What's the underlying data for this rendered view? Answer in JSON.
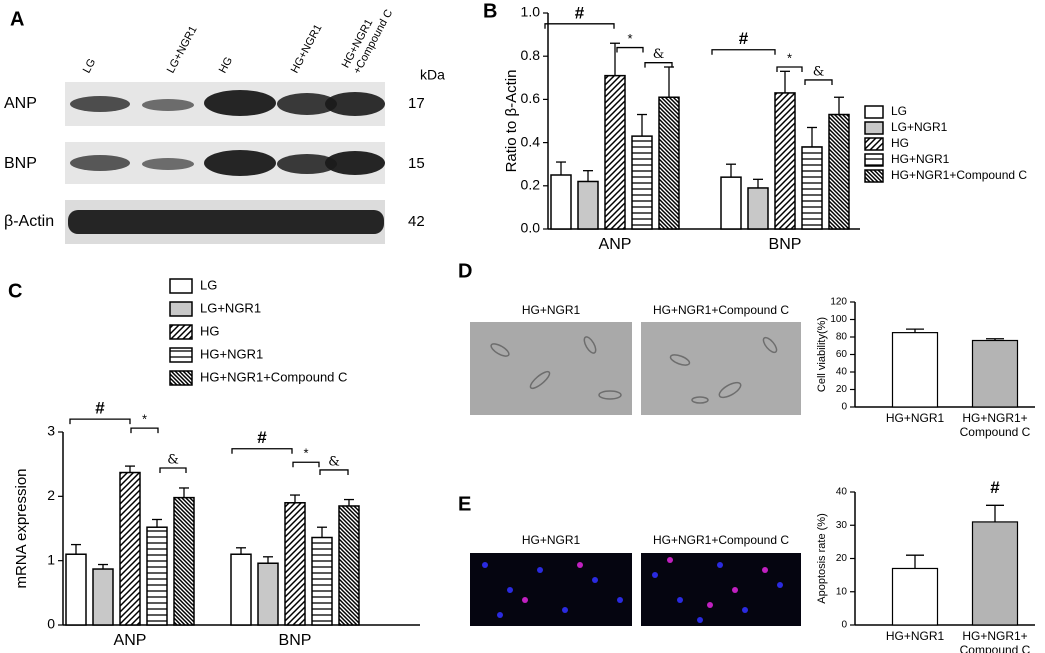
{
  "blot": {
    "panel_label": "A",
    "lanes": [
      "LG",
      "LG+NGR1",
      "HG",
      "HG+NGR1",
      "HG+NGR1\n+Compound C"
    ],
    "unit": "kDa",
    "rows": [
      {
        "label": "ANP",
        "kda": 17
      },
      {
        "label": "BNP",
        "kda": 15
      },
      {
        "label": "β-Actin",
        "kda": 42
      }
    ]
  },
  "chart_data": [
    {
      "type": "bar",
      "panel_label": "B",
      "y_label": "Ratio to β-Actin",
      "categories": [
        "ANP",
        "BNP"
      ],
      "series": [
        {
          "name": "LG",
          "color": "#ffffff",
          "pattern": "none",
          "values": [
            0.25,
            0.24
          ],
          "errors": [
            0.06,
            0.06
          ]
        },
        {
          "name": "LG+NGR1",
          "color": "#c8c8c8",
          "pattern": "none",
          "values": [
            0.22,
            0.19
          ],
          "errors": [
            0.05,
            0.04
          ]
        },
        {
          "name": "HG",
          "color": "#ffffff",
          "pattern": "diagonal",
          "values": [
            0.71,
            0.63
          ],
          "errors": [
            0.15,
            0.1
          ]
        },
        {
          "name": "HG+NGR1",
          "color": "#ffffff",
          "pattern": "horizontal",
          "values": [
            0.43,
            0.38
          ],
          "errors": [
            0.1,
            0.09
          ]
        },
        {
          "name": "HG+NGR1+Compound C",
          "color": "#ffffff",
          "pattern": "dense-diagonal",
          "values": [
            0.61,
            0.53
          ],
          "errors": [
            0.14,
            0.08
          ]
        }
      ],
      "ylim": [
        0,
        1.0
      ],
      "yticks": [
        {
          "value": 0,
          "label": "0.0"
        },
        {
          "value": 0.2,
          "label": "0.2"
        },
        {
          "value": 0.4,
          "label": "0.4"
        },
        {
          "value": 0.6,
          "label": "0.6"
        },
        {
          "value": 0.8,
          "label": "0.8"
        },
        {
          "value": 1.0,
          "label": "1.0"
        }
      ],
      "annotations": [
        "#",
        "*",
        "&",
        "#",
        "*",
        "&"
      ]
    },
    {
      "type": "bar",
      "panel_label": "C",
      "y_label": "mRNA expression",
      "categories": [
        "ANP",
        "BNP"
      ],
      "series": [
        {
          "name": "LG",
          "color": "#ffffff",
          "pattern": "none",
          "values": [
            1.1,
            1.1
          ],
          "errors": [
            0.15,
            0.1
          ]
        },
        {
          "name": "LG+NGR1",
          "color": "#c8c8c8",
          "pattern": "none",
          "values": [
            0.87,
            0.96
          ],
          "errors": [
            0.07,
            0.1
          ]
        },
        {
          "name": "HG",
          "color": "#ffffff",
          "pattern": "diagonal",
          "values": [
            2.37,
            1.9
          ],
          "errors": [
            0.1,
            0.12
          ]
        },
        {
          "name": "HG+NGR1",
          "color": "#ffffff",
          "pattern": "horizontal",
          "values": [
            1.52,
            1.36
          ],
          "errors": [
            0.12,
            0.16
          ]
        },
        {
          "name": "HG+NGR1+Compound C",
          "color": "#ffffff",
          "pattern": "dense-diagonal",
          "values": [
            1.98,
            1.85
          ],
          "errors": [
            0.15,
            0.1
          ]
        }
      ],
      "ylim": [
        0,
        3
      ],
      "yticks": [
        0,
        1,
        2,
        3
      ],
      "annotations": [
        "#",
        "*",
        "&",
        "#",
        "*",
        "&"
      ]
    },
    {
      "type": "bar",
      "panel_label": "D",
      "image_labels": [
        "HG+NGR1",
        "HG+NGR1+Compound C"
      ],
      "y_label": "Cell viability(%)",
      "categories": [
        "HG+NGR1",
        "HG+NGR1+\nCompound C"
      ],
      "values": [
        85,
        76
      ],
      "errors": [
        4,
        2
      ],
      "colors": [
        "#ffffff",
        "#b4b4b4"
      ],
      "ylim": [
        0,
        120
      ],
      "yticks": [
        0,
        20,
        40,
        60,
        80,
        100,
        120
      ]
    },
    {
      "type": "bar",
      "panel_label": "E",
      "image_labels": [
        "HG+NGR1",
        "HG+NGR1+Compound C"
      ],
      "y_label": "Apoptosis rate (%)",
      "categories": [
        "HG+NGR1",
        "HG+NGR1+\nCompound C"
      ],
      "values": [
        17,
        31
      ],
      "errors": [
        4,
        5
      ],
      "colors": [
        "#ffffff",
        "#b4b4b4"
      ],
      "ylim": [
        0,
        40
      ],
      "yticks": [
        0,
        10,
        20,
        30,
        40
      ],
      "annotations": [
        "#"
      ]
    }
  ]
}
